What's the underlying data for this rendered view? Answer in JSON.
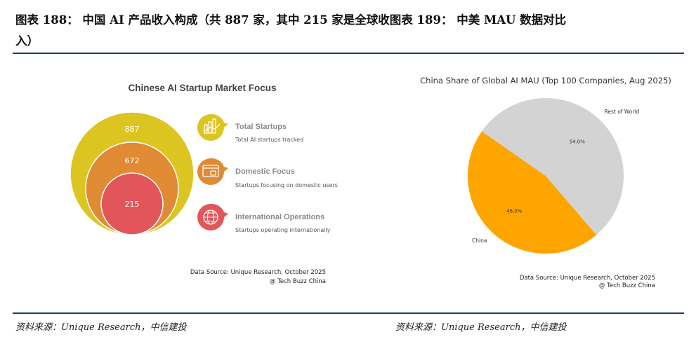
{
  "header": {
    "title_line1": "图表 188：  中国 AI 产品收入构成（共 887 家，其中 215 家是全球收图表 189：  中美 MAU 数据对比",
    "title_line2": "入）"
  },
  "footer": {
    "source_left": "资料来源：Unique Research，中信建投",
    "source_right": "资料来源：Unique Research，中信建投"
  },
  "colors": {
    "rule": "#1f3b63",
    "yellow": "#dcc520",
    "orange": "#e08a34",
    "red": "#e2555a",
    "pie_china": "#ffa500",
    "pie_rest": "#d3d3d3"
  },
  "chart_data": [
    {
      "type": "nested-circles",
      "title": "Chinese AI Startup Market Focus",
      "circles": [
        {
          "value": 887,
          "label": "Total Startups",
          "description": "Total AI startups tracked",
          "color": "#dcc520",
          "icon": "chart-growth-icon"
        },
        {
          "value": 672,
          "label": "Domestic Focus",
          "description": "Startups focusing on domestic users",
          "color": "#e08a34",
          "icon": "browser-window-icon"
        },
        {
          "value": 215,
          "label": "International Operations",
          "description": "Startups operating internationally",
          "color": "#e2555a",
          "icon": "globe-icon"
        }
      ],
      "source_line1": "Data Source: Unique Research, October 2025",
      "source_line2": "@ Tech Buzz China"
    },
    {
      "type": "pie",
      "title": "China Share of Global AI MAU (Top 100 Companies, Aug 2025)",
      "slices": [
        {
          "label": "China",
          "value": 46.0,
          "pct_label": "46.0%",
          "color": "#ffa500"
        },
        {
          "label": "Rest of World",
          "value": 54.0,
          "pct_label": "54.0%",
          "color": "#d3d3d3"
        }
      ],
      "source_line1": "Data Source: Unique Research, October 2025",
      "source_line2": "@ Tech Buzz China"
    }
  ]
}
